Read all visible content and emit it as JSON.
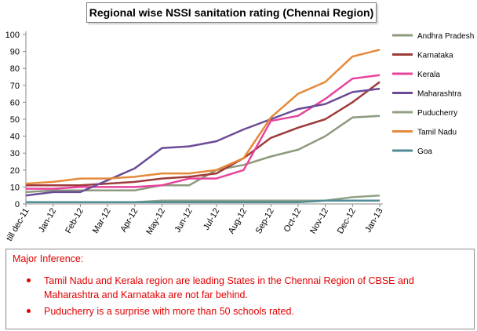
{
  "chart_data": {
    "type": "line",
    "title": "Regional wise NSSI sanitation rating (Chennai Region)",
    "categories": [
      "till dec-11",
      "Jan-12",
      "Feb-12",
      "Mar-12",
      "Apr-12",
      "May-12",
      "Jun-12",
      "Jul-12",
      "Aug-12",
      "Sep-12",
      "Oct-12",
      "Nov-12",
      "Dec-12",
      "Jan-13"
    ],
    "ylim": [
      0,
      100
    ],
    "yticks": [
      0,
      10,
      20,
      30,
      40,
      50,
      60,
      70,
      80,
      90,
      100
    ],
    "grid": false,
    "legend": "right",
    "series": [
      {
        "name": "Andhra Pradesh",
        "color": "#8c9a7e",
        "values": [
          7,
          8,
          8,
          8,
          8,
          11,
          11,
          20,
          23,
          28,
          32,
          40,
          51,
          52
        ]
      },
      {
        "name": "Karnataka",
        "color": "#9e3b3b",
        "values": [
          11,
          11,
          11,
          12,
          13,
          15,
          16,
          18,
          27,
          39,
          45,
          50,
          60,
          72
        ]
      },
      {
        "name": "Kerala",
        "color": "#e8449e",
        "values": [
          9,
          9,
          10,
          10,
          10,
          11,
          15,
          15,
          20,
          49,
          52,
          62,
          74,
          76
        ]
      },
      {
        "name": "Maharashtra",
        "color": "#6a4c96",
        "values": [
          5,
          7,
          7,
          14,
          21,
          33,
          34,
          37,
          44,
          50,
          56,
          59,
          66,
          68
        ]
      },
      {
        "name": "Puducherry",
        "color": "#93a287",
        "values": [
          1,
          1,
          1,
          1,
          1,
          2,
          2,
          2,
          2,
          2,
          2,
          2,
          4,
          5
        ]
      },
      {
        "name": "Tamil Nadu",
        "color": "#e5893a",
        "values": [
          12,
          13,
          15,
          15,
          16,
          18,
          18,
          20,
          27,
          51,
          65,
          72,
          87,
          91
        ]
      },
      {
        "name": "Goa",
        "color": "#4f8c96",
        "values": [
          1,
          1,
          1,
          1,
          1,
          1,
          1,
          1,
          1,
          1,
          1,
          2,
          2,
          2
        ]
      }
    ]
  },
  "inference": {
    "heading": "Major Inference:",
    "points": [
      "Tamil Nadu and Kerala region are leading States in the Chennai Region of CBSE and Maharashtra and Karnataka are not far behind.",
      "Puducherry is a surprise with more than 50 schools rated."
    ]
  }
}
